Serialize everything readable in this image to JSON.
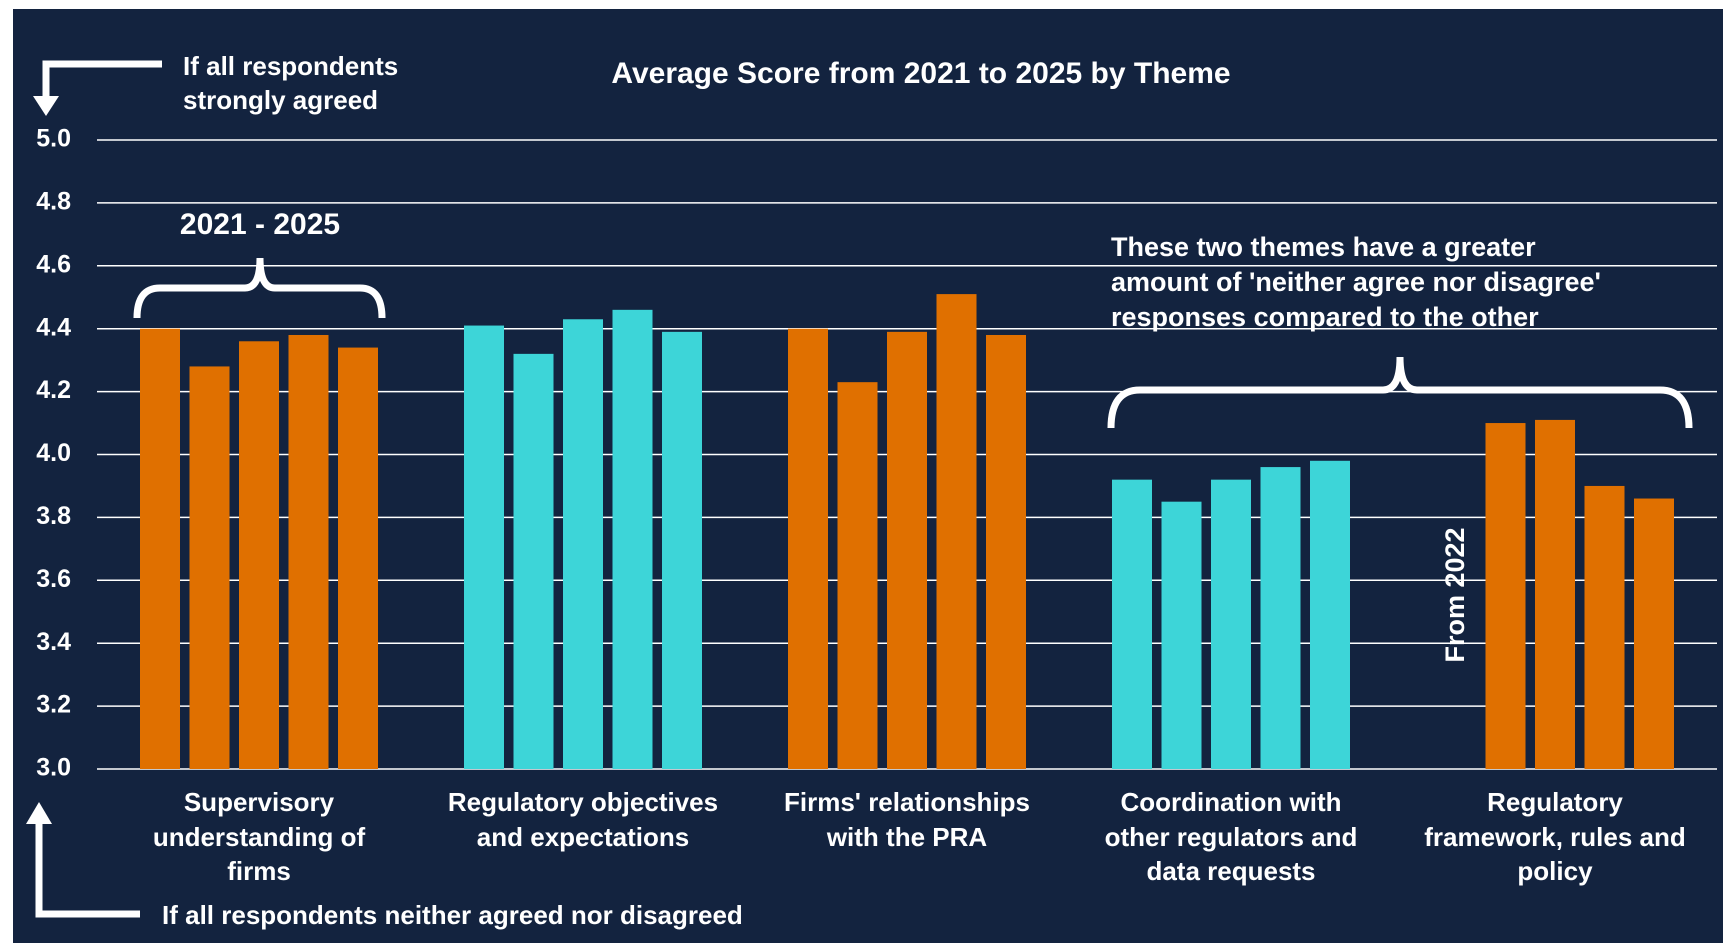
{
  "chart_data": {
    "type": "grouped_bar",
    "title": "Average Score from 2021 to 2025 by Theme",
    "categories": [
      "Supervisory\nunderstanding of\nfirms",
      "Regulatory objectives\nand expectations",
      "Firms' relationships\nwith the PRA",
      "Coordination with\nother regulators and\ndata requests",
      "Regulatory\nframework, rules and\npolicy"
    ],
    "groups": [
      {
        "color": "#e07000",
        "values": [
          4.4,
          4.28,
          4.36,
          4.38,
          4.34
        ]
      },
      {
        "color": "#3dd5d8",
        "values": [
          4.41,
          4.32,
          4.43,
          4.46,
          4.39
        ]
      },
      {
        "color": "#e07000",
        "values": [
          4.4,
          4.23,
          4.39,
          4.51,
          4.38
        ]
      },
      {
        "color": "#3dd5d8",
        "values": [
          3.92,
          3.85,
          3.92,
          3.96,
          3.98
        ]
      },
      {
        "color": "#e07000",
        "values": [
          null,
          4.1,
          4.11,
          3.9,
          3.86
        ]
      }
    ],
    "ylim": [
      3.0,
      5.0
    ],
    "yticks": [
      {
        "value": 3.0,
        "label": "3.0"
      },
      {
        "value": 3.2,
        "label": "3.2"
      },
      {
        "value": 3.4,
        "label": "3.4"
      },
      {
        "value": 3.6,
        "label": "3.6"
      },
      {
        "value": 3.8,
        "label": "3.8"
      },
      {
        "value": 4.0,
        "label": "4.0"
      },
      {
        "value": 4.2,
        "label": "4.2"
      },
      {
        "value": 4.4,
        "label": "4.4"
      },
      {
        "value": 4.6,
        "label": "4.6"
      },
      {
        "value": 4.8,
        "label": "4.8"
      },
      {
        "value": 5.0,
        "label": "5.0"
      }
    ],
    "grid": true,
    "annotations": {
      "top_arrow": "If all respondents\nstrongly agreed",
      "bottom_arrow": "If all respondents neither agreed nor disagreed",
      "bracket_left": "2021 - 2025",
      "bracket_right": "These two themes have a greater\namount of 'neither agree nor disagree'\nresponses compared to the other",
      "bar_note": "From 2022"
    }
  }
}
